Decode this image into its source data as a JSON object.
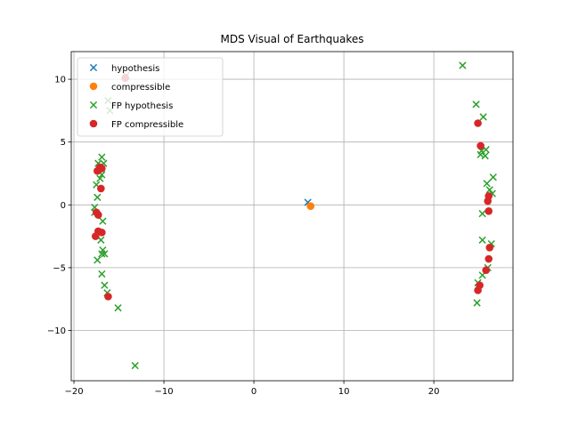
{
  "chart_data": {
    "type": "scatter",
    "title": "MDS Visual of Earthquakes",
    "xlabel": "",
    "ylabel": "",
    "xlim": [
      -20.3,
      28.8
    ],
    "ylim": [
      -14.0,
      12.2
    ],
    "xticks": [
      -20,
      -10,
      0,
      10,
      20
    ],
    "yticks": [
      -10,
      -5,
      0,
      5,
      10
    ],
    "xtick_labels": [
      "−20",
      "−10",
      "0",
      "10",
      "20"
    ],
    "ytick_labels": [
      "−10",
      "−5",
      "0",
      "5",
      "10"
    ],
    "grid": true,
    "legend_position": "top-left",
    "series": [
      {
        "name": "hypothesis",
        "marker": "x",
        "color": "#1f77b4",
        "points": [
          [
            6.0,
            0.2
          ]
        ]
      },
      {
        "name": "compressible",
        "marker": "o",
        "color": "#ff7f0e",
        "points": [
          [
            6.3,
            -0.1
          ]
        ]
      },
      {
        "name": "FP hypothesis",
        "marker": "x",
        "color": "#2ca02c",
        "points": [
          [
            23.2,
            11.1
          ],
          [
            24.7,
            8.0
          ],
          [
            25.5,
            7.0
          ],
          [
            25.3,
            4.3
          ],
          [
            25.8,
            4.4
          ],
          [
            25.7,
            3.9
          ],
          [
            25.2,
            4.0
          ],
          [
            26.6,
            2.2
          ],
          [
            25.9,
            1.7
          ],
          [
            26.5,
            0.9
          ],
          [
            26.2,
            1.2
          ],
          [
            25.4,
            -0.7
          ],
          [
            25.4,
            -2.8
          ],
          [
            26.4,
            -3.1
          ],
          [
            26.0,
            -5.0
          ],
          [
            25.4,
            -5.6
          ],
          [
            24.9,
            -6.2
          ],
          [
            24.8,
            -7.8
          ],
          [
            -16.2,
            8.3
          ],
          [
            -16.0,
            7.5
          ],
          [
            -14.2,
            10.3
          ],
          [
            -16.9,
            3.8
          ],
          [
            -16.7,
            3.3
          ],
          [
            -17.3,
            3.3
          ],
          [
            -17.5,
            1.6
          ],
          [
            -17.1,
            2.1
          ],
          [
            -16.9,
            2.4
          ],
          [
            -17.4,
            0.6
          ],
          [
            -17.7,
            -0.2
          ],
          [
            -17.7,
            -0.6
          ],
          [
            -16.8,
            -1.3
          ],
          [
            -17.3,
            -2.2
          ],
          [
            -17.4,
            -2.5
          ],
          [
            -17.0,
            -2.8
          ],
          [
            -16.8,
            -3.6
          ],
          [
            -16.9,
            -3.9
          ],
          [
            -16.6,
            -3.9
          ],
          [
            -17.4,
            -4.4
          ],
          [
            -16.9,
            -5.5
          ],
          [
            -16.6,
            -6.4
          ],
          [
            -16.3,
            -7.0
          ],
          [
            -15.1,
            -8.2
          ],
          [
            -13.2,
            -12.8
          ]
        ]
      },
      {
        "name": "FP compressible",
        "marker": "o",
        "color": "#d62728",
        "points": [
          [
            24.9,
            6.5
          ],
          [
            25.2,
            4.7
          ],
          [
            26.1,
            0.7
          ],
          [
            26.0,
            0.3
          ],
          [
            26.1,
            -0.5
          ],
          [
            26.2,
            -3.4
          ],
          [
            26.1,
            -4.3
          ],
          [
            25.8,
            -5.2
          ],
          [
            25.1,
            -6.4
          ],
          [
            24.9,
            -6.8
          ],
          [
            -14.3,
            10.1
          ],
          [
            -17.1,
            3.0
          ],
          [
            -16.9,
            2.9
          ],
          [
            -17.4,
            2.7
          ],
          [
            -17.2,
            2.8
          ],
          [
            -17.0,
            1.3
          ],
          [
            -17.5,
            -0.6
          ],
          [
            -17.3,
            -0.8
          ],
          [
            -17.3,
            -2.1
          ],
          [
            -16.9,
            -2.2
          ],
          [
            -17.6,
            -2.5
          ],
          [
            -16.2,
            -7.3
          ]
        ]
      }
    ]
  }
}
